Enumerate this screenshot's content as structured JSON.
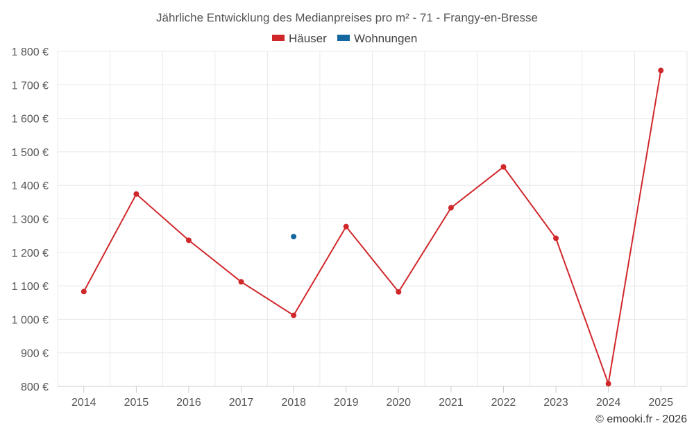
{
  "chart_data": {
    "type": "line",
    "title": "Jährliche Entwicklung des Medianpreises pro m² - 71 - Frangy-en-Bresse",
    "x": [
      "2014",
      "2015",
      "2016",
      "2017",
      "2018",
      "2019",
      "2020",
      "2021",
      "2022",
      "2023",
      "2024",
      "2025"
    ],
    "series": [
      {
        "name": "Häuser",
        "color": "#d0272b",
        "values": [
          1083,
          1374,
          1236,
          1112,
          1012,
          1277,
          1082,
          1333,
          1455,
          1242,
          808,
          1743
        ]
      },
      {
        "name": "Wohnungen",
        "color": "#1366a0",
        "values": [
          null,
          null,
          null,
          null,
          1247,
          null,
          null,
          null,
          null,
          null,
          null,
          null
        ]
      }
    ],
    "ylim": [
      800,
      1800
    ],
    "yticks": [
      800,
      900,
      1000,
      1100,
      1200,
      1300,
      1400,
      1500,
      1600,
      1700,
      1800
    ],
    "ytick_labels": [
      "800 €",
      "900 €",
      "1 000 €",
      "1 100 €",
      "1 200 €",
      "1 300 €",
      "1 400 €",
      "1 500 €",
      "1 600 €",
      "1 700 €",
      "1 800 €"
    ],
    "grid": true,
    "legend_position": "top-center"
  },
  "credit": "© emooki.fr - 2026"
}
